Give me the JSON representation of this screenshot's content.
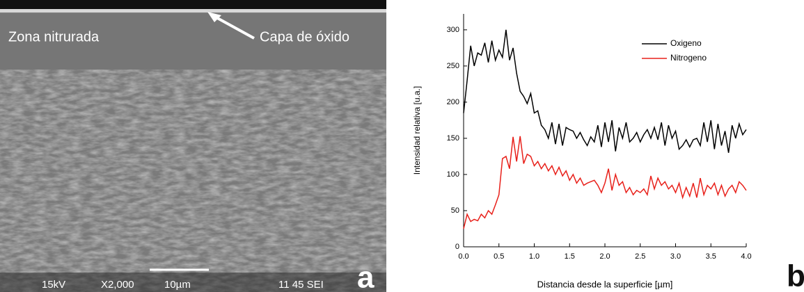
{
  "panel_a": {
    "labels": {
      "zone": "Zona nitrurada",
      "oxide": "Capa de óxido"
    },
    "footer": {
      "voltage": "15kV",
      "magnification": "X2,000",
      "scale": "10µm",
      "info": "11 45 SEI"
    },
    "letter": "a"
  },
  "panel_b_letter": "b",
  "chart_data": {
    "type": "line",
    "x_label": "Distancia desde la superficie [µm]",
    "y_label": "Intensidad relativa [u.a.]",
    "x": [
      0,
      0.05,
      0.1,
      0.15,
      0.2,
      0.25,
      0.3,
      0.35,
      0.4,
      0.45,
      0.5,
      0.55,
      0.6,
      0.65,
      0.7,
      0.75,
      0.8,
      0.85,
      0.9,
      0.95,
      1.0,
      1.05,
      1.1,
      1.15,
      1.2,
      1.25,
      1.3,
      1.35,
      1.4,
      1.45,
      1.5,
      1.55,
      1.6,
      1.65,
      1.7,
      1.75,
      1.8,
      1.85,
      1.9,
      1.95,
      2.0,
      2.05,
      2.1,
      2.15,
      2.2,
      2.25,
      2.3,
      2.35,
      2.4,
      2.45,
      2.5,
      2.55,
      2.6,
      2.65,
      2.7,
      2.75,
      2.8,
      2.85,
      2.9,
      2.95,
      3.0,
      3.05,
      3.1,
      3.15,
      3.2,
      3.25,
      3.3,
      3.35,
      3.4,
      3.45,
      3.5,
      3.55,
      3.6,
      3.65,
      3.7,
      3.75,
      3.8,
      3.85,
      3.9,
      3.95,
      4.0
    ],
    "series": [
      {
        "name": "Oxigeno",
        "color": "#000000",
        "values": [
          185,
          230,
          278,
          250,
          268,
          265,
          282,
          255,
          285,
          258,
          272,
          262,
          300,
          258,
          275,
          240,
          215,
          208,
          198,
          212,
          185,
          188,
          168,
          162,
          150,
          172,
          142,
          170,
          140,
          165,
          162,
          160,
          150,
          158,
          148,
          140,
          152,
          145,
          168,
          138,
          172,
          145,
          175,
          132,
          165,
          150,
          172,
          145,
          150,
          158,
          145,
          155,
          162,
          150,
          165,
          148,
          172,
          140,
          168,
          150,
          160,
          135,
          140,
          148,
          138,
          148,
          150,
          140,
          172,
          145,
          175,
          135,
          170,
          140,
          160,
          130,
          168,
          150,
          170,
          155,
          162
        ]
      },
      {
        "name": "Nitrogeno",
        "color": "#e8201a",
        "values": [
          25,
          45,
          35,
          38,
          36,
          45,
          40,
          50,
          45,
          58,
          72,
          122,
          125,
          108,
          152,
          118,
          153,
          115,
          128,
          125,
          112,
          118,
          108,
          115,
          105,
          112,
          100,
          110,
          98,
          105,
          92,
          100,
          88,
          95,
          85,
          88,
          90,
          92,
          85,
          75,
          88,
          108,
          78,
          100,
          85,
          90,
          75,
          82,
          72,
          78,
          75,
          80,
          72,
          98,
          80,
          95,
          85,
          90,
          80,
          85,
          75,
          88,
          68,
          82,
          70,
          88,
          68,
          95,
          72,
          85,
          80,
          88,
          72,
          85,
          70,
          80,
          85,
          75,
          90,
          85,
          78
        ]
      }
    ],
    "xlim": [
      0,
      4
    ],
    "ylim": [
      0,
      322
    ],
    "xticks": [
      {
        "value": 0,
        "label": "0.0"
      },
      {
        "value": 0.5,
        "label": "0.5"
      },
      {
        "value": 1,
        "label": "1.0"
      },
      {
        "value": 1.5,
        "label": "1.5"
      },
      {
        "value": 2,
        "label": "2.0"
      },
      {
        "value": 2.5,
        "label": "2.5"
      },
      {
        "value": 3,
        "label": "3.0"
      },
      {
        "value": 3.5,
        "label": "3.5"
      },
      {
        "value": 4,
        "label": "4.0"
      }
    ],
    "yticks": [
      0,
      50,
      100,
      150,
      200,
      250,
      300
    ],
    "legend": "upper-right"
  }
}
